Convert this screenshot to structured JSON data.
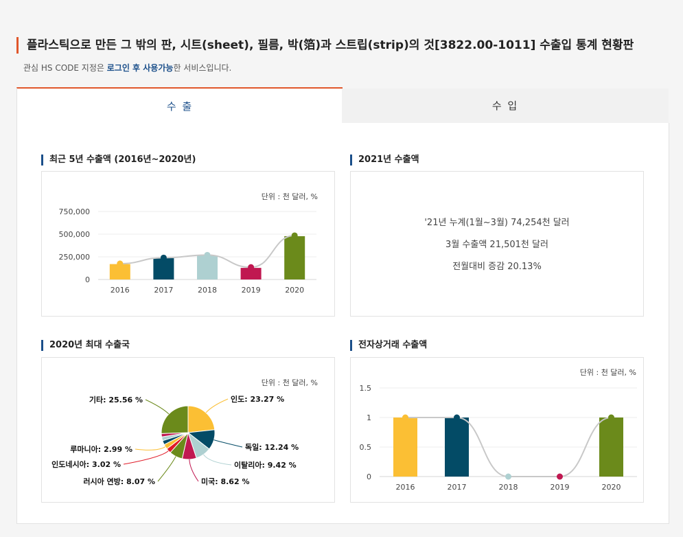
{
  "header": {
    "title": "플라스틱으로 만든 그 밖의 판, 시트(sheet), 필름, 박(箔)과 스트립(strip)의 것[3822.00-1011] 수출입 통계 현황판",
    "subtitle_pre": "관심 HS CODE 지정은 ",
    "subtitle_bold": "로그인 후 사용가능",
    "subtitle_post": "한 서비스입니다."
  },
  "tabs": [
    {
      "label": "수 출",
      "active": true
    },
    {
      "label": "수 입",
      "active": false
    }
  ],
  "sections": {
    "recent5": {
      "title": "최근 5년 수출액 (2016년~2020년)",
      "unit": "단위 : 천 달러, %"
    },
    "y2021": {
      "title": "2021년 수출액",
      "lines": [
        "'21년 누계(1월~3월) 74,254천 달러",
        "3월 수출액 21,501천 달러",
        "전월대비 증감 20.13%"
      ]
    },
    "top2020": {
      "title": "2020년 최대 수출국",
      "unit": "단위 : 천 달러, %"
    },
    "ecommerce": {
      "title": "전자상거래 수출액",
      "unit": "단위 : 천 달러, %"
    }
  },
  "colors": {
    "accent": "#e0562a",
    "navy": "#1b4f8a",
    "bars": [
      "#fbbf34",
      "#034b66",
      "#aed0d1",
      "#c01851",
      "#6b8a1b"
    ],
    "line": "#c8c8c8"
  },
  "chart_data": [
    {
      "type": "bar",
      "categories": [
        "2016",
        "2017",
        "2018",
        "2019",
        "2020"
      ],
      "values": [
        170000,
        236000,
        265000,
        128000,
        478000
      ],
      "line_values": [
        175000,
        240000,
        270000,
        135000,
        485000
      ],
      "yticks": [
        "750,000",
        "500,000",
        "250,000",
        "0"
      ],
      "ylim": [
        0,
        750000
      ]
    },
    {
      "type": "pie",
      "slices": [
        {
          "label": "인도: 23.27 %",
          "value": 23.27,
          "color": "#fbbf34"
        },
        {
          "label": "독일: 12.24 %",
          "value": 12.24,
          "color": "#034b66"
        },
        {
          "label": "이탈리아: 9.42 %",
          "value": 9.42,
          "color": "#aed0d1"
        },
        {
          "label": "미국: 8.62 %",
          "value": 8.62,
          "color": "#c01851"
        },
        {
          "label": "러시아 연방: 8.07 %",
          "value": 8.07,
          "color": "#6b8a1b"
        },
        {
          "label": "인도네시아: 3.02 %",
          "value": 3.02,
          "color": "#e01a27"
        },
        {
          "label": "루마니아: 2.99 %",
          "value": 2.99,
          "color": "#fbbf34"
        },
        {
          "label": "",
          "value": 2.5,
          "color": "#034b66"
        },
        {
          "label": "",
          "value": 2.3,
          "color": "#aed0d1"
        },
        {
          "label": "",
          "value": 2.0,
          "color": "#c01851"
        },
        {
          "label": "기타: 25.56 %",
          "value": 25.56,
          "color": "#6b8a1b"
        }
      ]
    },
    {
      "type": "bar",
      "categories": [
        "2016",
        "2017",
        "2018",
        "2019",
        "2020"
      ],
      "values": [
        1,
        1,
        0,
        0,
        1
      ],
      "line_values": [
        1,
        1,
        0,
        0,
        1
      ],
      "yticks": [
        "1.5",
        "1",
        "0.5",
        "0"
      ],
      "ylim": [
        0,
        1.5
      ]
    }
  ]
}
